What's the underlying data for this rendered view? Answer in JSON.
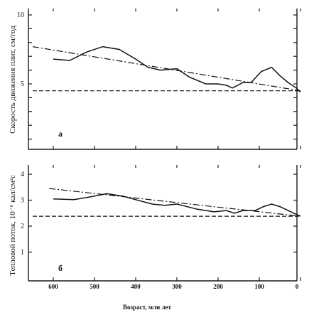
{
  "chart_data": [
    {
      "type": "line",
      "panel_label": "а",
      "ylabel": "Скорость движения плит, см/год",
      "ylim": [
        0,
        10
      ],
      "xlim": [
        650,
        0
      ],
      "y_tick_labels": [
        "10",
        "5"
      ],
      "series": [
        {
          "style": "solid",
          "x": [
            600,
            560,
            520,
            480,
            440,
            400,
            370,
            340,
            300,
            270,
            230,
            200,
            180,
            165,
            140,
            120,
            95,
            70,
            50,
            30,
            10,
            0
          ],
          "y": [
            6.8,
            6.7,
            7.3,
            7.7,
            7.5,
            6.8,
            6.2,
            6.0,
            6.1,
            5.5,
            5.0,
            5.0,
            4.9,
            4.7,
            5.1,
            5.1,
            5.9,
            6.2,
            5.6,
            5.1,
            4.7,
            4.4
          ]
        },
        {
          "style": "dash-dot",
          "x": [
            650,
            0
          ],
          "y": [
            7.7,
            4.5
          ]
        },
        {
          "style": "dashed",
          "x": [
            650,
            0
          ],
          "y": [
            4.5,
            4.5
          ]
        }
      ]
    },
    {
      "type": "line",
      "panel_label": "б",
      "ylabel": "Тепловой поток, 10⁻⁶ кал/см²с",
      "ylim": [
        0,
        4
      ],
      "xlim": [
        650,
        0
      ],
      "y_tick_labels": [
        "4",
        "3",
        "2",
        "1"
      ],
      "series": [
        {
          "style": "solid",
          "x": [
            600,
            550,
            520,
            470,
            430,
            400,
            360,
            330,
            300,
            250,
            210,
            180,
            160,
            140,
            110,
            90,
            70,
            50,
            30,
            10,
            0
          ],
          "y": [
            3.05,
            3.02,
            3.1,
            3.25,
            3.15,
            3.02,
            2.85,
            2.8,
            2.85,
            2.65,
            2.55,
            2.6,
            2.5,
            2.6,
            2.6,
            2.75,
            2.85,
            2.75,
            2.6,
            2.45,
            2.38
          ]
        },
        {
          "style": "dash-dot",
          "x": [
            610,
            0
          ],
          "y": [
            3.45,
            2.38
          ]
        },
        {
          "style": "dashed",
          "x": [
            650,
            0
          ],
          "y": [
            2.38,
            2.38
          ]
        }
      ]
    }
  ],
  "x_axis": {
    "label": "Возраст, млн лет",
    "ticks": [
      600,
      500,
      400,
      300,
      200,
      100,
      0
    ]
  }
}
